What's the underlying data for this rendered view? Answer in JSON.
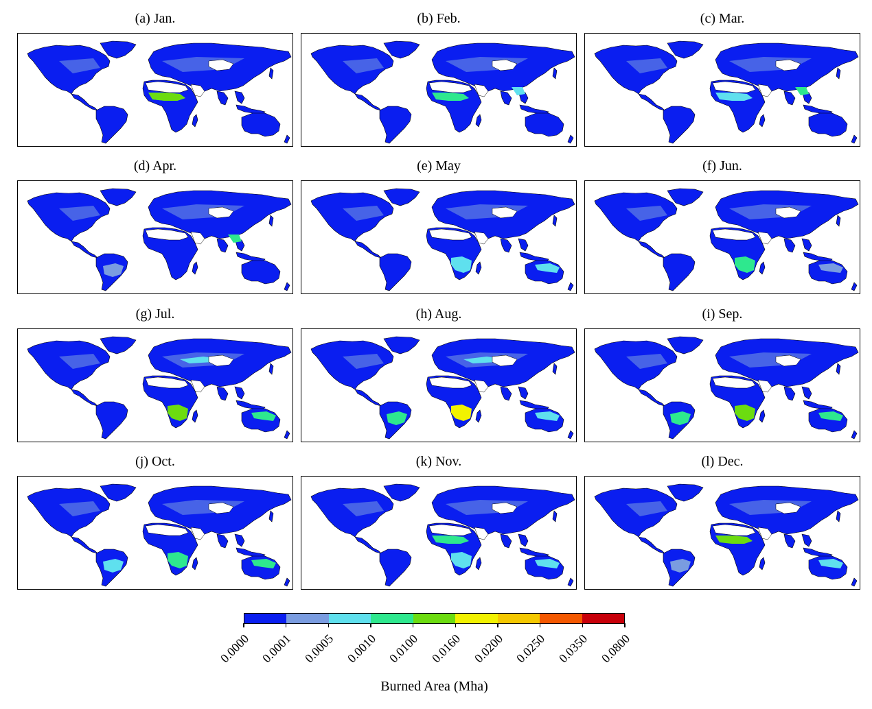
{
  "panels": [
    {
      "title": "(a) Jan."
    },
    {
      "title": "(b) Feb."
    },
    {
      "title": "(c) Mar."
    },
    {
      "title": "(d) Apr."
    },
    {
      "title": "(e) May"
    },
    {
      "title": "(f) Jun."
    },
    {
      "title": "(g) Jul."
    },
    {
      "title": "(h) Aug."
    },
    {
      "title": "(i) Sep."
    },
    {
      "title": "(j) Oct."
    },
    {
      "title": "(k) Nov."
    },
    {
      "title": "(l) Dec."
    }
  ],
  "colorbar": {
    "label": "Burned Area (Mha)",
    "ticks": [
      "0.0000",
      "0.0001",
      "0.0005",
      "0.0010",
      "0.0100",
      "0.0160",
      "0.0200",
      "0.0250",
      "0.0350",
      "0.0800"
    ],
    "colors": [
      "#0a1ef0",
      "#7a9ce0",
      "#5fe0ee",
      "#2ee88e",
      "#6cdc10",
      "#f2f200",
      "#f4c800",
      "#f45800",
      "#c8000a"
    ]
  },
  "colors": {
    "land_base": "#0a1ef0",
    "coast": "#000000"
  }
}
